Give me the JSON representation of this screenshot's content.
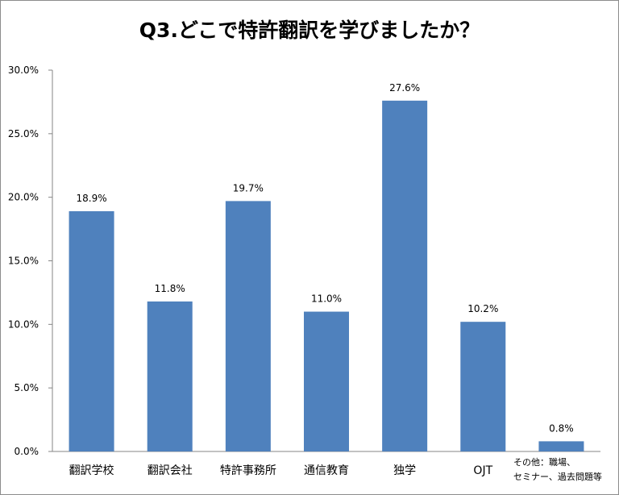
{
  "chart_data": {
    "type": "bar",
    "title": "Q3.どこで特許翻訳を学びましたか？",
    "categories": [
      "翻訳学校",
      "翻訳会社",
      "特許事務所",
      "通信教育",
      "独学",
      "OJT",
      "その他：職場、セミナー、過去問題等"
    ],
    "category_lines": [
      [
        "翻訳学校"
      ],
      [
        "翻訳会社"
      ],
      [
        "特許事務所"
      ],
      [
        "通信教育"
      ],
      [
        "独学"
      ],
      [
        "OJT"
      ],
      [
        "その他：職場、",
        "セミナー、過去問題等"
      ]
    ],
    "values": [
      18.9,
      11.8,
      19.7,
      11.0,
      27.6,
      10.2,
      0.8
    ],
    "data_labels": [
      "18.9%",
      "11.8%",
      "19.7%",
      "11.0%",
      "27.6%",
      "10.2%",
      "0.8%"
    ],
    "yticks": [
      "0.0%",
      "5.0%",
      "10.0%",
      "15.0%",
      "20.0%",
      "25.0%",
      "30.0%"
    ],
    "ylim": [
      0,
      30
    ],
    "xlabel": "",
    "ylabel": "",
    "grid": false,
    "legend": "none",
    "bar_color": "#4f81bd"
  }
}
